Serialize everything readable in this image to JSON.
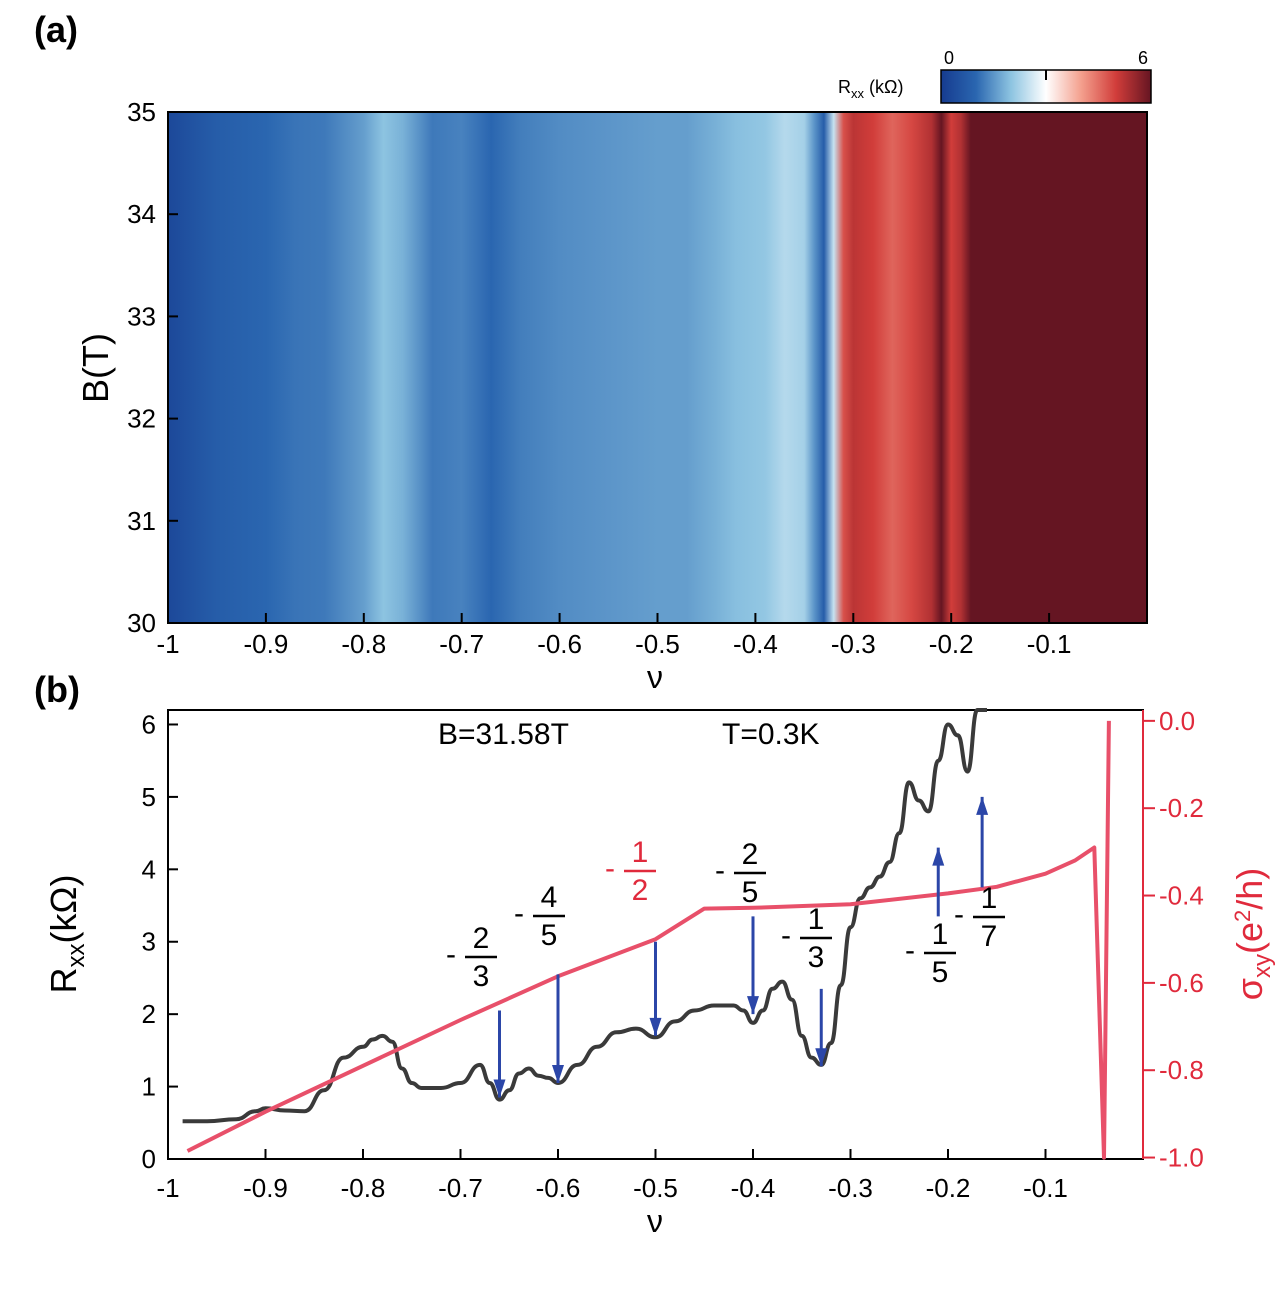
{
  "chart_data": [
    {
      "panel_label": "(a)",
      "type": "heatmap",
      "xlabel": "ν",
      "ylabel": "B(T)",
      "xlim": [
        -1,
        0
      ],
      "ylim": [
        30,
        35
      ],
      "xticks": [
        -1,
        -0.9,
        -0.8,
        -0.7,
        -0.6,
        -0.5,
        -0.4,
        -0.3,
        -0.2,
        -0.1
      ],
      "xtick_labels": [
        "-1",
        "-0.9",
        "-0.8",
        "-0.7",
        "-0.6",
        "-0.5",
        "-0.4",
        "-0.3",
        "-0.2",
        "-0.1"
      ],
      "yticks": [
        30,
        31,
        32,
        33,
        34,
        35
      ],
      "ytick_labels": [
        "30",
        "31",
        "32",
        "33",
        "34",
        "35"
      ],
      "colorbar": {
        "label_main": "R",
        "label_sub": "xx",
        "label_unit": " (kΩ)",
        "min": 0,
        "max": 6,
        "min_label": "0",
        "max_label": "6",
        "mid_tick": 3,
        "colors": [
          "#163b8f",
          "#2a66b0",
          "#8dc4e1",
          "#ffffff",
          "#f4a08e",
          "#d13d3a",
          "#651522"
        ]
      },
      "columns": {
        "nu": [
          -1.0,
          -0.98,
          -0.95,
          -0.9,
          -0.87,
          -0.84,
          -0.8,
          -0.78,
          -0.76,
          -0.73,
          -0.7,
          -0.67,
          -0.64,
          -0.6,
          -0.55,
          -0.5,
          -0.47,
          -0.44,
          -0.42,
          -0.39,
          -0.37,
          -0.35,
          -0.34,
          -0.33,
          -0.32,
          -0.31,
          -0.3,
          -0.28,
          -0.26,
          -0.24,
          -0.22,
          -0.21,
          -0.2,
          -0.19,
          -0.18,
          -0.16,
          -0.1,
          0.0
        ],
        "rxx": [
          0.3,
          0.5,
          0.8,
          1.0,
          1.15,
          1.2,
          1.6,
          2.0,
          1.8,
          1.2,
          1.3,
          1.0,
          1.25,
          1.4,
          1.5,
          1.6,
          1.6,
          1.8,
          1.95,
          2.05,
          2.35,
          2.2,
          1.5,
          0.8,
          2.5,
          4.8,
          5.2,
          5.0,
          4.6,
          4.9,
          5.3,
          6.0,
          5.0,
          5.3,
          6.0,
          6.0,
          6.0,
          6.0
        ]
      }
    },
    {
      "panel_label": "(b)",
      "type": "line",
      "xlabel": "ν",
      "ylabel_main": "R",
      "ylabel_sub": "xx",
      "ylabel_unit": "(kΩ)",
      "y2label_main": "σ",
      "y2label_sub": "xy",
      "y2label_unit": "(e",
      "y2label_sup": "2",
      "y2label_end": "/h)",
      "xlim": [
        -1,
        0
      ],
      "ylim": [
        0,
        6.2
      ],
      "y2lim": [
        -1.0,
        0.0
      ],
      "xticks": [
        -1,
        -0.9,
        -0.8,
        -0.7,
        -0.6,
        -0.5,
        -0.4,
        -0.3,
        -0.2,
        -0.1
      ],
      "xtick_labels": [
        "-1",
        "-0.9",
        "-0.8",
        "-0.7",
        "-0.6",
        "-0.5",
        "-0.4",
        "-0.3",
        "-0.2",
        "-0.1"
      ],
      "yticks": [
        0,
        1,
        2,
        3,
        4,
        5,
        6
      ],
      "ytick_labels": [
        "0",
        "1",
        "2",
        "3",
        "4",
        "5",
        "6"
      ],
      "y2ticks": [
        -1.0,
        -0.8,
        -0.6,
        -0.4,
        -0.2,
        0.0
      ],
      "y2tick_labels": [
        "-1.0",
        "-0.8",
        "-0.6",
        "-0.4",
        "-0.2",
        "0.0"
      ],
      "annotations_top": [
        "B=31.58T",
        "T=0.3K"
      ],
      "series": [
        {
          "axis": "left",
          "color": "#3a3a3a",
          "x": [
            -0.985,
            -0.96,
            -0.93,
            -0.91,
            -0.9,
            -0.88,
            -0.86,
            -0.84,
            -0.82,
            -0.8,
            -0.79,
            -0.78,
            -0.77,
            -0.76,
            -0.75,
            -0.74,
            -0.72,
            -0.7,
            -0.68,
            -0.67,
            -0.66,
            -0.65,
            -0.64,
            -0.63,
            -0.62,
            -0.61,
            -0.6,
            -0.58,
            -0.56,
            -0.54,
            -0.52,
            -0.5,
            -0.48,
            -0.46,
            -0.44,
            -0.42,
            -0.41,
            -0.4,
            -0.39,
            -0.38,
            -0.37,
            -0.36,
            -0.35,
            -0.34,
            -0.33,
            -0.32,
            -0.31,
            -0.3,
            -0.29,
            -0.28,
            -0.27,
            -0.26,
            -0.25,
            -0.24,
            -0.23,
            -0.22,
            -0.21,
            -0.2,
            -0.19,
            -0.18,
            -0.17,
            -0.16
          ],
          "values": [
            0.52,
            0.52,
            0.55,
            0.66,
            0.7,
            0.67,
            0.66,
            0.95,
            1.4,
            1.55,
            1.65,
            1.7,
            1.62,
            1.25,
            1.05,
            0.98,
            0.98,
            1.05,
            1.3,
            1.05,
            0.82,
            0.95,
            1.18,
            1.25,
            1.15,
            1.12,
            1.05,
            1.3,
            1.55,
            1.75,
            1.8,
            1.68,
            1.9,
            2.05,
            2.12,
            2.12,
            2.05,
            1.88,
            2.05,
            2.35,
            2.45,
            2.2,
            1.7,
            1.4,
            1.3,
            1.6,
            2.4,
            3.2,
            3.6,
            3.75,
            3.9,
            4.1,
            4.5,
            5.2,
            4.95,
            4.8,
            5.5,
            6.0,
            5.85,
            5.35,
            6.3,
            6.3
          ]
        },
        {
          "axis": "right",
          "color": "#e8506a",
          "x": [
            -0.98,
            -0.9,
            -0.8,
            -0.7,
            -0.6,
            -0.5,
            -0.45,
            -0.4,
            -0.3,
            -0.2,
            -0.15,
            -0.1,
            -0.07,
            -0.05,
            -0.04,
            -0.035
          ],
          "values": [
            -0.985,
            -0.895,
            -0.79,
            -0.685,
            -0.585,
            -0.5,
            -0.43,
            -0.428,
            -0.42,
            -0.395,
            -0.38,
            -0.35,
            -0.32,
            -0.29,
            -1.0,
            0.0
          ]
        }
      ],
      "fraction_labels": [
        {
          "sign": "-",
          "num": "2",
          "den": "3",
          "color": "#000000",
          "x": -0.66,
          "arrow": "down",
          "arrow_from": 2.05,
          "arrow_to": 0.85
        },
        {
          "sign": "-",
          "num": "4",
          "den": "5",
          "color": "#000000",
          "x": -0.6,
          "arrow": "down",
          "arrow_from": 2.55,
          "arrow_to": 1.05
        },
        {
          "sign": "-",
          "num": "1",
          "den": "2",
          "color": "#e02a3c",
          "x": -0.5,
          "arrow": "down",
          "arrow_from": 3.0,
          "arrow_to": 1.7
        },
        {
          "sign": "-",
          "num": "2",
          "den": "5",
          "color": "#000000",
          "x": -0.4,
          "arrow": "down",
          "arrow_from": 3.35,
          "arrow_to": 2.0
        },
        {
          "sign": "-",
          "num": "1",
          "den": "3",
          "color": "#000000",
          "x": -0.33,
          "arrow": "down",
          "arrow_from": 2.35,
          "arrow_to": 1.28
        },
        {
          "sign": "-",
          "num": "1",
          "den": "5",
          "color": "#000000",
          "x": -0.21,
          "arrow": "up",
          "arrow_from": 3.35,
          "arrow_to": 4.3
        },
        {
          "sign": "-",
          "num": "1",
          "den": "7",
          "color": "#000000",
          "x": -0.165,
          "arrow": "up",
          "arrow_from": 3.75,
          "arrow_to": 5.0
        }
      ]
    }
  ]
}
